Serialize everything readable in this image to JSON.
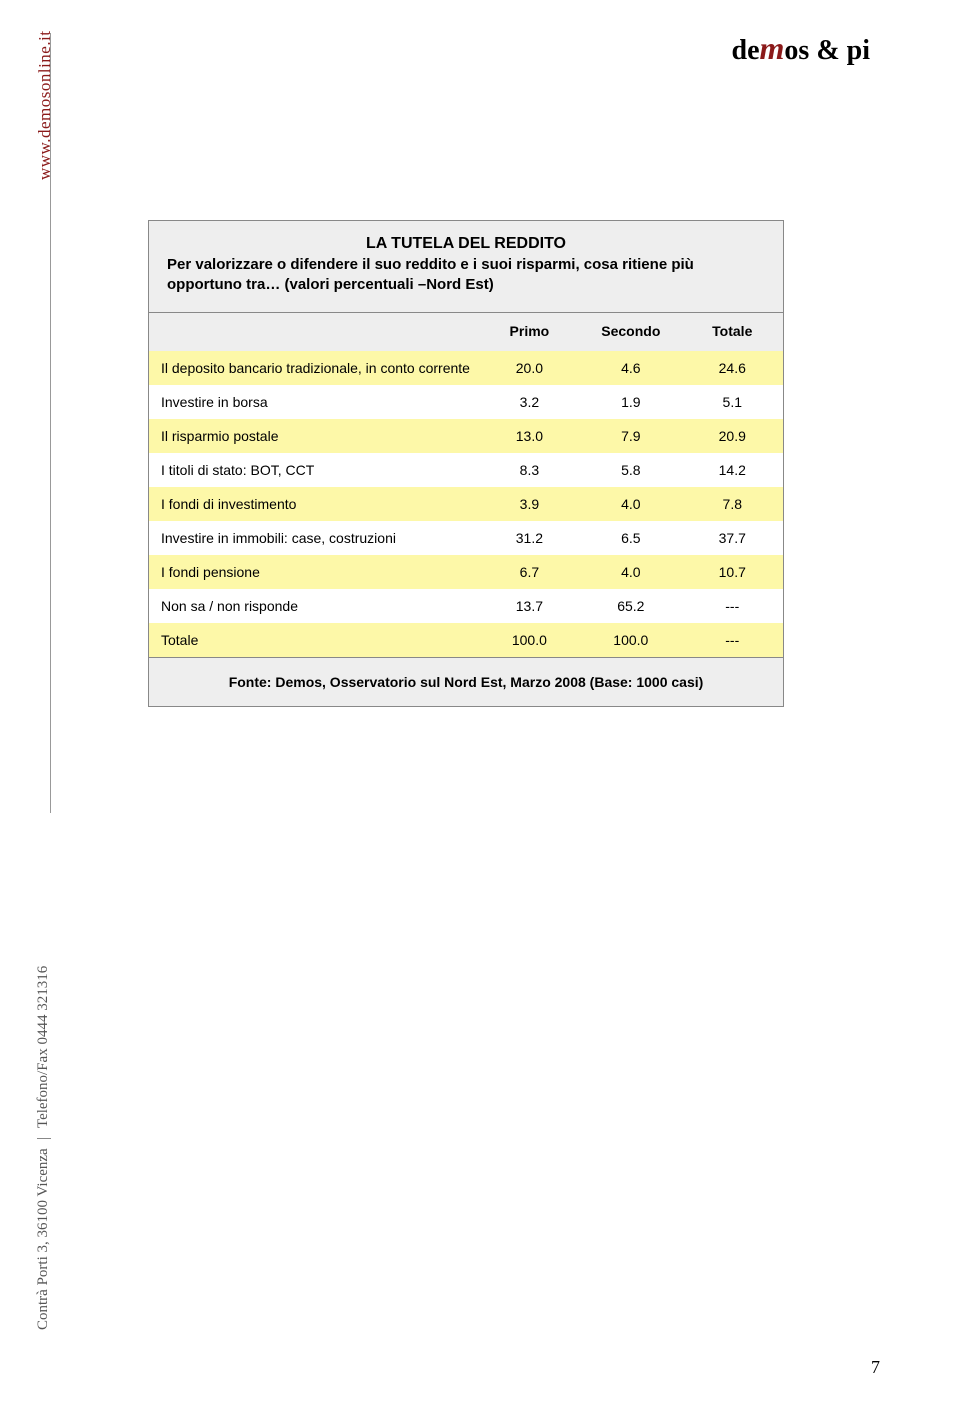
{
  "side": {
    "url": "www.demosonline.it",
    "address_1": "Contrà Porti 3, 36100 Vicenza",
    "address_2": "Telefono/Fax 0444 321316"
  },
  "logo": {
    "pre": "de",
    "m": "m",
    "post": "os & pi"
  },
  "table": {
    "title": "LA TUTELA DEL REDDITO",
    "subtitle": "Per valorizzare o difendere il suo reddito e i suoi risparmi, cosa ritiene più opportuno tra… (valori percentuali –Nord Est)",
    "columns": [
      "",
      "Primo",
      "Secondo",
      "Totale"
    ],
    "rows": [
      {
        "label": "Il deposito bancario tradizionale, in conto corrente",
        "primo": "20.0",
        "secondo": "4.6",
        "totale": "24.6",
        "highlight": true
      },
      {
        "label": "Investire in borsa",
        "primo": "3.2",
        "secondo": "1.9",
        "totale": "5.1",
        "highlight": false
      },
      {
        "label": "Il risparmio postale",
        "primo": "13.0",
        "secondo": "7.9",
        "totale": "20.9",
        "highlight": true
      },
      {
        "label": "I titoli di stato: BOT, CCT",
        "primo": "8.3",
        "secondo": "5.8",
        "totale": "14.2",
        "highlight": false
      },
      {
        "label": "I fondi di investimento",
        "primo": "3.9",
        "secondo": "4.0",
        "totale": "7.8",
        "highlight": true
      },
      {
        "label": "Investire in immobili: case, costruzioni",
        "primo": "31.2",
        "secondo": "6.5",
        "totale": "37.7",
        "highlight": false
      },
      {
        "label": "I fondi pensione",
        "primo": "6.7",
        "secondo": "4.0",
        "totale": "10.7",
        "highlight": true
      },
      {
        "label": "Non sa / non risponde",
        "primo": "13.7",
        "secondo": "65.2",
        "totale": "---",
        "highlight": false
      },
      {
        "label": "Totale",
        "primo": "100.0",
        "secondo": "100.0",
        "totale": "---",
        "highlight": true
      }
    ],
    "footer": "Fonte: Demos, Osservatorio sul Nord Est, Marzo 2008 (Base: 1000 casi)",
    "highlight_color": "#fdf8a8",
    "header_bg": "#eeeeee"
  },
  "page_number": "7"
}
